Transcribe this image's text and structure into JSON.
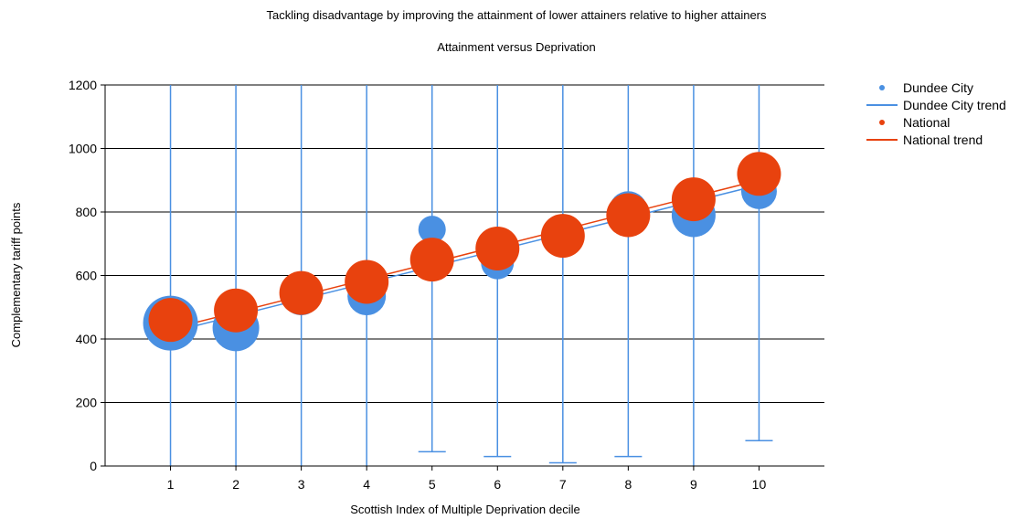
{
  "chart_data": {
    "type": "scatter",
    "title": "Tackling disadvantage by improving the attainment of lower attainers relative to higher attainers",
    "subtitle": "Attainment versus Deprivation",
    "xlabel": "Scottish Index of Multiple Deprivation decile",
    "ylabel": "Complementary tariff points",
    "x_ticks": [
      "1",
      "2",
      "3",
      "4",
      "5",
      "6",
      "7",
      "8",
      "9",
      "10"
    ],
    "y_ticks": [
      "0",
      "200",
      "400",
      "600",
      "800",
      "1000",
      "1200"
    ],
    "xlim": [
      0,
      11
    ],
    "ylim": [
      0,
      1200
    ],
    "grid": "horizontal",
    "legend_position": "top-right",
    "legend": [
      {
        "label": "Dundee City",
        "kind": "point",
        "color": "#4a90e2"
      },
      {
        "label": "Dundee City trend",
        "kind": "line",
        "color": "#4a90e2"
      },
      {
        "label": "National",
        "kind": "point",
        "color": "#e8420e"
      },
      {
        "label": "National trend",
        "kind": "line",
        "color": "#e8420e"
      }
    ],
    "series": [
      {
        "name": "Dundee City",
        "color": "#4a90e2",
        "x": [
          1,
          2,
          3,
          4,
          5,
          6,
          7,
          8,
          9,
          10
        ],
        "y": [
          450,
          435,
          535,
          535,
          745,
          640,
          730,
          805,
          790,
          865
        ],
        "relative_size": [
          1.0,
          0.85,
          0.7,
          0.7,
          0.5,
          0.6,
          0.7,
          0.7,
          0.8,
          0.65
        ],
        "range_min": [
          0,
          0,
          0,
          0,
          45,
          30,
          10,
          30,
          0,
          80
        ],
        "range_max": [
          1200,
          1200,
          1200,
          1200,
          1200,
          1200,
          1200,
          1200,
          1200,
          1200
        ]
      },
      {
        "name": "National",
        "color": "#e8420e",
        "x": [
          1,
          2,
          3,
          4,
          5,
          6,
          7,
          8,
          9,
          10
        ],
        "y": [
          460,
          490,
          545,
          580,
          650,
          685,
          725,
          790,
          840,
          920
        ],
        "relative_size": [
          0.8,
          0.8,
          0.8,
          0.8,
          0.8,
          0.8,
          0.8,
          0.8,
          0.8,
          0.8
        ]
      }
    ],
    "trends": [
      {
        "name": "Dundee City trend",
        "color": "#4a90e2",
        "x": [
          1,
          10
        ],
        "y": [
          422,
          885
        ]
      },
      {
        "name": "National trend",
        "color": "#e8420e",
        "x": [
          1,
          10
        ],
        "y": [
          432,
          900
        ]
      }
    ]
  }
}
